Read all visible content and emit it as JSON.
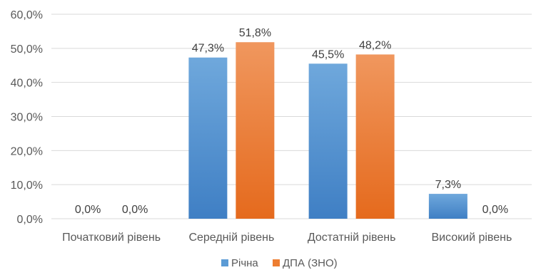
{
  "chart_data": {
    "type": "bar",
    "categories": [
      "Початковий рівень",
      "Середній рівень",
      "Достатній рівень",
      "Високий рівень"
    ],
    "series": [
      {
        "name": "Річна",
        "values": [
          0.0,
          47.3,
          45.5,
          7.3
        ],
        "color": "#5b9bd5",
        "labels": [
          "0,0%",
          "47,3%",
          "45,5%",
          "7,3%"
        ]
      },
      {
        "name": "ДПА (ЗНО)",
        "values": [
          0.0,
          51.8,
          48.2,
          0.0
        ],
        "color": "#ed7d31",
        "labels": [
          "0,0%",
          "51,8%",
          "48,2%",
          "0,0%"
        ]
      }
    ],
    "y_ticks": [
      "0,0%",
      "10,0%",
      "20,0%",
      "30,0%",
      "40,0%",
      "50,0%",
      "60,0%"
    ],
    "ylim": [
      0,
      60
    ],
    "grid": true,
    "legend_position": "bottom"
  }
}
